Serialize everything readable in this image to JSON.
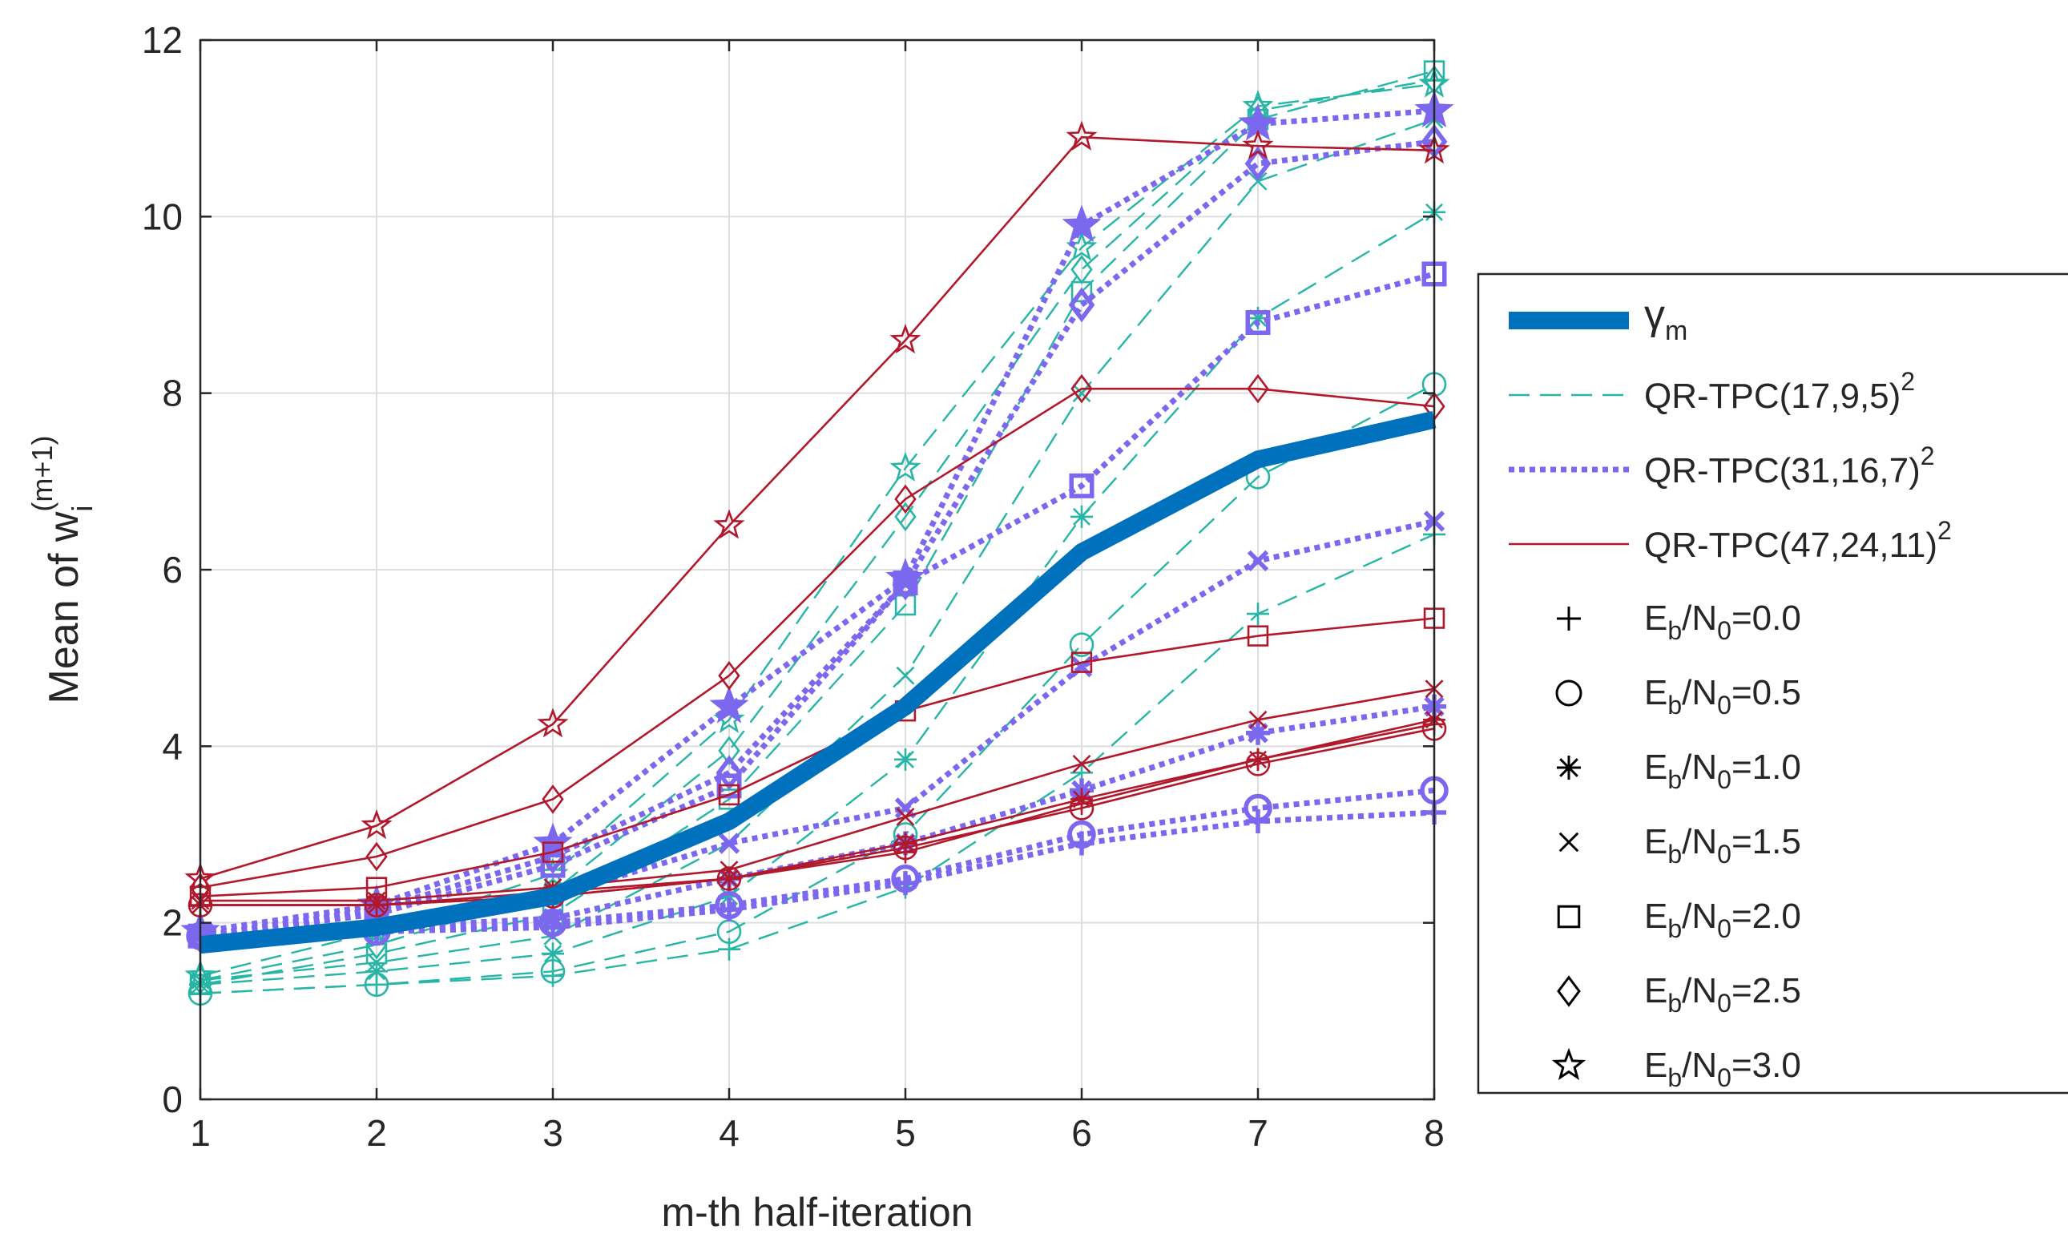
{
  "chart_data": {
    "type": "line",
    "x": [
      1,
      2,
      3,
      4,
      5,
      6,
      7,
      8
    ],
    "xlabel": "m-th half-iteration",
    "ylabel": {
      "base": "Mean of w",
      "sub": "i",
      "sup": "(m+1)"
    },
    "xlim": [
      1,
      8
    ],
    "ylim": [
      0,
      12
    ],
    "xticks": [
      1,
      2,
      3,
      4,
      5,
      6,
      7,
      8
    ],
    "yticks": [
      0,
      2,
      4,
      6,
      8,
      10,
      12
    ],
    "grid": true,
    "legend_position": "right",
    "gamma": {
      "label": "γ",
      "sub": "m",
      "color": "#0072BD",
      "values": [
        1.75,
        1.95,
        2.3,
        3.15,
        4.45,
        6.2,
        7.25,
        7.7
      ]
    },
    "codes": [
      {
        "label": "QR-TPC(17,9,5)",
        "sup": "2",
        "color": "#27B5A5",
        "style": "dashed"
      },
      {
        "label": "QR-TPC(31,16,7)",
        "sup": "2",
        "color": "#7B68EE",
        "style": "dotted"
      },
      {
        "label": "QR-TPC(47,24,11)",
        "sup": "2",
        "color": "#B2182B",
        "style": "solid"
      }
    ],
    "snr_labels": [
      {
        "marker": "plus",
        "pre": "E",
        "sub1": "b",
        "mid": "/N",
        "sub2": "0",
        "post": "=0.0"
      },
      {
        "marker": "circle",
        "pre": "E",
        "sub1": "b",
        "mid": "/N",
        "sub2": "0",
        "post": "=0.5"
      },
      {
        "marker": "asterisk",
        "pre": "E",
        "sub1": "b",
        "mid": "/N",
        "sub2": "0",
        "post": "=1.0"
      },
      {
        "marker": "cross",
        "pre": "E",
        "sub1": "b",
        "mid": "/N",
        "sub2": "0",
        "post": "=1.5"
      },
      {
        "marker": "square",
        "pre": "E",
        "sub1": "b",
        "mid": "/N",
        "sub2": "0",
        "post": "=2.0"
      },
      {
        "marker": "diamond",
        "pre": "E",
        "sub1": "b",
        "mid": "/N",
        "sub2": "0",
        "post": "=2.5"
      },
      {
        "marker": "star",
        "pre": "E",
        "sub1": "b",
        "mid": "/N",
        "sub2": "0",
        "post": "=3.0"
      }
    ],
    "series": [
      {
        "code": 0,
        "marker": "plus",
        "values": [
          1.2,
          1.3,
          1.4,
          1.7,
          2.4,
          3.7,
          5.5,
          6.4
        ]
      },
      {
        "code": 0,
        "marker": "circle",
        "values": [
          1.2,
          1.3,
          1.45,
          1.9,
          3.0,
          5.15,
          7.05,
          8.1
        ]
      },
      {
        "code": 0,
        "marker": "asterisk",
        "values": [
          1.3,
          1.45,
          1.65,
          2.3,
          3.85,
          6.6,
          8.85,
          10.05
        ]
      },
      {
        "code": 0,
        "marker": "cross",
        "values": [
          1.35,
          1.55,
          1.85,
          2.9,
          4.8,
          8.0,
          10.4,
          11.1
        ]
      },
      {
        "code": 0,
        "marker": "square",
        "values": [
          1.3,
          1.65,
          2.1,
          3.4,
          5.6,
          9.15,
          11.1,
          11.65
        ]
      },
      {
        "code": 0,
        "marker": "diamond",
        "values": [
          1.35,
          1.75,
          2.35,
          3.95,
          6.6,
          9.4,
          11.2,
          11.55
        ]
      },
      {
        "code": 0,
        "marker": "star",
        "values": [
          1.4,
          1.9,
          2.55,
          4.3,
          7.15,
          9.65,
          11.25,
          11.5
        ]
      },
      {
        "code": 1,
        "marker": "plus",
        "values": [
          1.85,
          1.9,
          1.95,
          2.15,
          2.45,
          2.9,
          3.15,
          3.25
        ]
      },
      {
        "code": 1,
        "marker": "circle",
        "values": [
          1.85,
          1.9,
          2.0,
          2.2,
          2.5,
          3.0,
          3.3,
          3.5
        ]
      },
      {
        "code": 1,
        "marker": "asterisk",
        "values": [
          1.85,
          1.95,
          2.05,
          2.5,
          2.9,
          3.5,
          4.15,
          4.45
        ]
      },
      {
        "code": 1,
        "marker": "cross",
        "values": [
          1.85,
          2.0,
          2.3,
          2.9,
          3.3,
          4.9,
          6.1,
          6.55
        ]
      },
      {
        "code": 1,
        "marker": "square",
        "values": [
          1.85,
          2.1,
          2.65,
          3.55,
          5.85,
          6.95,
          8.8,
          9.35
        ]
      },
      {
        "code": 1,
        "marker": "diamond",
        "values": [
          1.85,
          2.15,
          2.75,
          3.7,
          5.85,
          9.0,
          10.6,
          10.85
        ]
      },
      {
        "code": 1,
        "marker": "star",
        "values": [
          1.9,
          2.2,
          2.9,
          4.45,
          5.9,
          9.9,
          11.05,
          11.2
        ]
      },
      {
        "code": 2,
        "marker": "plus",
        "values": [
          2.2,
          2.2,
          2.3,
          2.5,
          2.8,
          3.35,
          3.85,
          4.25
        ]
      },
      {
        "code": 2,
        "marker": "circle",
        "values": [
          2.2,
          2.2,
          2.3,
          2.5,
          2.85,
          3.3,
          3.8,
          4.2
        ]
      },
      {
        "code": 2,
        "marker": "asterisk",
        "values": [
          2.2,
          2.2,
          2.35,
          2.5,
          2.9,
          3.4,
          3.85,
          4.3
        ]
      },
      {
        "code": 2,
        "marker": "cross",
        "values": [
          2.25,
          2.25,
          2.4,
          2.6,
          3.2,
          3.8,
          4.3,
          4.65
        ]
      },
      {
        "code": 2,
        "marker": "square",
        "values": [
          2.3,
          2.4,
          2.8,
          3.45,
          4.4,
          4.95,
          5.25,
          5.45
        ]
      },
      {
        "code": 2,
        "marker": "diamond",
        "values": [
          2.4,
          2.75,
          3.4,
          4.8,
          6.8,
          8.05,
          8.05,
          7.85
        ]
      },
      {
        "code": 2,
        "marker": "star",
        "values": [
          2.5,
          3.1,
          4.25,
          6.5,
          8.6,
          10.9,
          10.8,
          10.75
        ]
      }
    ]
  }
}
